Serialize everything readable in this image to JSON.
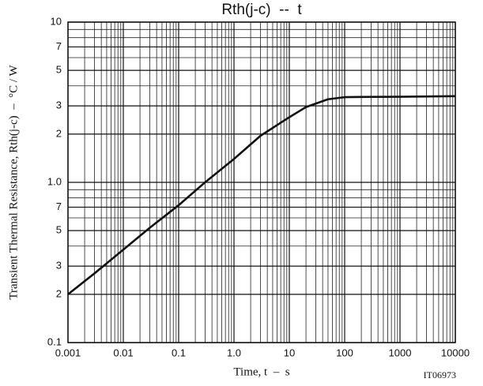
{
  "chart_data": {
    "type": "line",
    "title": "Rth(j-c)  --  t",
    "x_label": "Time, t  –  s",
    "y_label": "Transient Thermal Resistance, Rth(j-c)  –  °C / W",
    "annotation": "IT06973",
    "x": [
      0.001,
      0.003,
      0.01,
      0.03,
      0.1,
      0.3,
      1,
      3,
      10,
      20,
      50,
      100,
      200,
      1000,
      10000
    ],
    "series": [
      {
        "name": "Rth(j-c)",
        "color": "#111111",
        "values": [
          0.2,
          0.27,
          0.38,
          0.52,
          0.72,
          1.0,
          1.4,
          1.95,
          2.55,
          2.95,
          3.3,
          3.4,
          3.41,
          3.42,
          3.45
        ]
      }
    ],
    "xlim": [
      0.001,
      10000
    ],
    "ylim": [
      0.1,
      10
    ],
    "xlog": true,
    "ylog": true,
    "xticks": [
      0.001,
      0.01,
      0.1,
      {
        "value": 1,
        "label": "1.0"
      },
      10,
      100,
      1000,
      10000
    ],
    "yticks": [
      {
        "value": 0.1,
        "label": "0.1"
      },
      {
        "value": 0.2,
        "label": "2"
      },
      {
        "value": 0.3,
        "label": "3"
      },
      {
        "value": 0.5,
        "label": "5"
      },
      {
        "value": 0.7,
        "label": "7"
      },
      {
        "value": 1,
        "label": "1.0"
      },
      2,
      3,
      5,
      7,
      10
    ],
    "grid": true,
    "minor_grid": true
  }
}
